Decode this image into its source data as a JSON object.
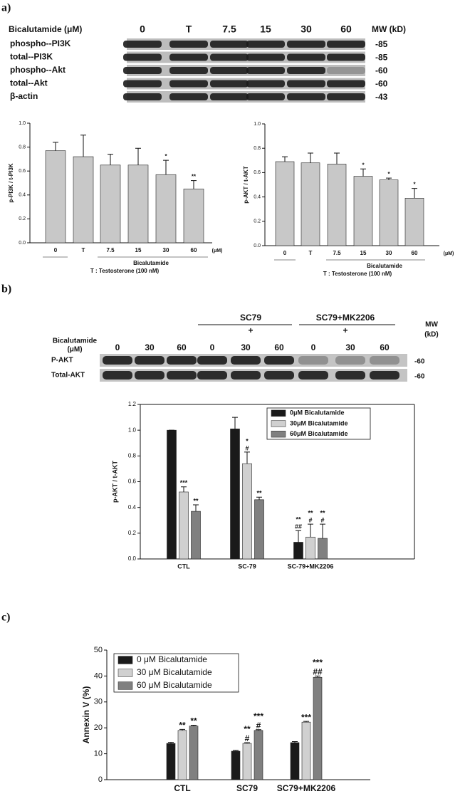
{
  "panel_labels": [
    "a)",
    "b)",
    "c)"
  ],
  "blot_a": {
    "header": "Bicalutamide (μM)",
    "lanes": [
      "0",
      "T",
      "7.5",
      "15",
      "30",
      "60"
    ],
    "mw_header": "MW (kD)",
    "rows": [
      {
        "label": "phospho--PI3K",
        "mw": "-85"
      },
      {
        "label": "total--PI3K",
        "mw": "-85"
      },
      {
        "label": "phospho--Akt",
        "mw": "-60"
      },
      {
        "label": "total--Akt",
        "mw": "-60"
      },
      {
        "label": "β-actin",
        "mw": "-43"
      }
    ]
  },
  "blot_b": {
    "groups": [
      {
        "label": "SC79",
        "sign": "+"
      },
      {
        "label": "SC79+MK2206",
        "sign": "+"
      }
    ],
    "header": [
      "Bicalutamide",
      "(μM)"
    ],
    "lanes": [
      "0",
      "30",
      "60",
      "0",
      "30",
      "60",
      "0",
      "30",
      "60"
    ],
    "mw_header": [
      "MW",
      "(kD)"
    ],
    "rows": [
      {
        "label": "P-AKT",
        "mw": "-60"
      },
      {
        "label": "Total-AKT",
        "mw": "-60"
      }
    ]
  },
  "chart_data": [
    {
      "type": "bar",
      "y_label": "p-PI3K / t-PI3K",
      "categories": [
        "0",
        "T",
        "7.5",
        "15",
        "30",
        "60"
      ],
      "values": [
        0.77,
        0.72,
        0.65,
        0.65,
        0.57,
        0.45
      ],
      "errors": [
        0.07,
        0.18,
        0.09,
        0.14,
        0.12,
        0.07
      ],
      "annotations": [
        null,
        null,
        null,
        null,
        "*",
        "**"
      ],
      "color": "#c8c8c8",
      "ylim": [
        0,
        1
      ],
      "yticks": [
        {
          "value": 0,
          "label": "0.0"
        },
        {
          "value": 0.2,
          "label": "0.2"
        },
        {
          "value": 0.4,
          "label": "0.4"
        },
        {
          "value": 0.6,
          "label": "0.6"
        },
        {
          "value": 0.8,
          "label": "0.8"
        },
        {
          "value": 1,
          "label": "1.0"
        }
      ],
      "x_unit": "(μM)",
      "group_label": "Bicalutamide",
      "footnote": "T : Testosterone (100 nM)"
    },
    {
      "type": "bar",
      "y_label": "p-AKT / t-AKT",
      "categories": [
        "0",
        "T",
        "7.5",
        "15",
        "30",
        "60"
      ],
      "values": [
        0.69,
        0.68,
        0.67,
        0.57,
        0.54,
        0.39
      ],
      "errors": [
        0.04,
        0.08,
        0.09,
        0.06,
        0.015,
        0.08
      ],
      "annotations": [
        null,
        null,
        null,
        "*",
        "*",
        "*"
      ],
      "color": "#c8c8c8",
      "ylim": [
        0,
        1
      ],
      "yticks": [
        {
          "value": 0,
          "label": "0.0"
        },
        {
          "value": 0.2,
          "label": "0.2"
        },
        {
          "value": 0.4,
          "label": "0.4"
        },
        {
          "value": 0.6,
          "label": "0.6"
        },
        {
          "value": 0.8,
          "label": "0.8"
        },
        {
          "value": 1,
          "label": "1.0"
        }
      ],
      "x_unit": "(μM)",
      "group_label": "Bicalutamide",
      "footnote": "T : Testosterone (100 nM)"
    },
    {
      "type": "grouped_bar",
      "y_label": "p-AKT / t-AKT",
      "categories": [
        "CTL",
        "SC-79",
        "SC-79+MK2206"
      ],
      "series": [
        {
          "name": "0μM Bicalutamide",
          "color": "#1a1a1a",
          "values": [
            1.0,
            1.01,
            0.13
          ],
          "errors": [
            0,
            0.09,
            0.09
          ],
          "annotations": [
            [],
            [],
            [
              "**",
              "##"
            ]
          ]
        },
        {
          "name": "30μM Bicalutamide",
          "color": "#d0d0d0",
          "values": [
            0.52,
            0.74,
            0.17
          ],
          "errors": [
            0.04,
            0.09,
            0.1
          ],
          "annotations": [
            [
              "***"
            ],
            [
              "*",
              "#"
            ],
            [
              "**",
              "#"
            ]
          ]
        },
        {
          "name": "60μM Bicalutamide",
          "color": "#808080",
          "values": [
            0.37,
            0.46,
            0.16
          ],
          "errors": [
            0.05,
            0.02,
            0.11
          ],
          "annotations": [
            [
              "**"
            ],
            [
              "**"
            ],
            [
              "**",
              "#"
            ]
          ]
        }
      ],
      "ylim": [
        0,
        1.2
      ],
      "yticks": [
        {
          "value": 0,
          "label": "0.0"
        },
        {
          "value": 0.2,
          "label": "0.2"
        },
        {
          "value": 0.4,
          "label": "0.4"
        },
        {
          "value": 0.6,
          "label": "0.6"
        },
        {
          "value": 0.8,
          "label": "0.8"
        },
        {
          "value": 1,
          "label": "1.0"
        },
        {
          "value": 1.2,
          "label": "1.2"
        }
      ],
      "legend": "upper right"
    },
    {
      "type": "grouped_bar",
      "y_label": "Annexin V (%)",
      "categories": [
        "CTL",
        "SC79",
        "SC79+MK2206"
      ],
      "series": [
        {
          "name": "0 μM Bicalutamide",
          "color": "#1a1a1a",
          "values": [
            14,
            11,
            14.3
          ],
          "errors": [
            0.4,
            0.3,
            0.4
          ],
          "annotations": [
            [],
            [],
            []
          ]
        },
        {
          "name": "30 μM Bicalutamide",
          "color": "#d0d0d0",
          "values": [
            19,
            14,
            22.2
          ],
          "errors": [
            0.4,
            0.3,
            0.3
          ],
          "annotations": [
            [
              "**"
            ],
            [
              "**",
              "#"
            ],
            [
              "***"
            ]
          ]
        },
        {
          "name": "60 μM Bicalutamide",
          "color": "#808080",
          "values": [
            20.7,
            19,
            39.5
          ],
          "errors": [
            0.3,
            0.3,
            0.5
          ],
          "annotations": [
            [
              "**"
            ],
            [
              "***",
              "#"
            ],
            [
              "***",
              "##"
            ]
          ]
        }
      ],
      "ylim": [
        0,
        50
      ],
      "yticks": [
        0,
        10,
        20,
        30,
        40,
        50
      ],
      "legend": "upper left"
    }
  ]
}
